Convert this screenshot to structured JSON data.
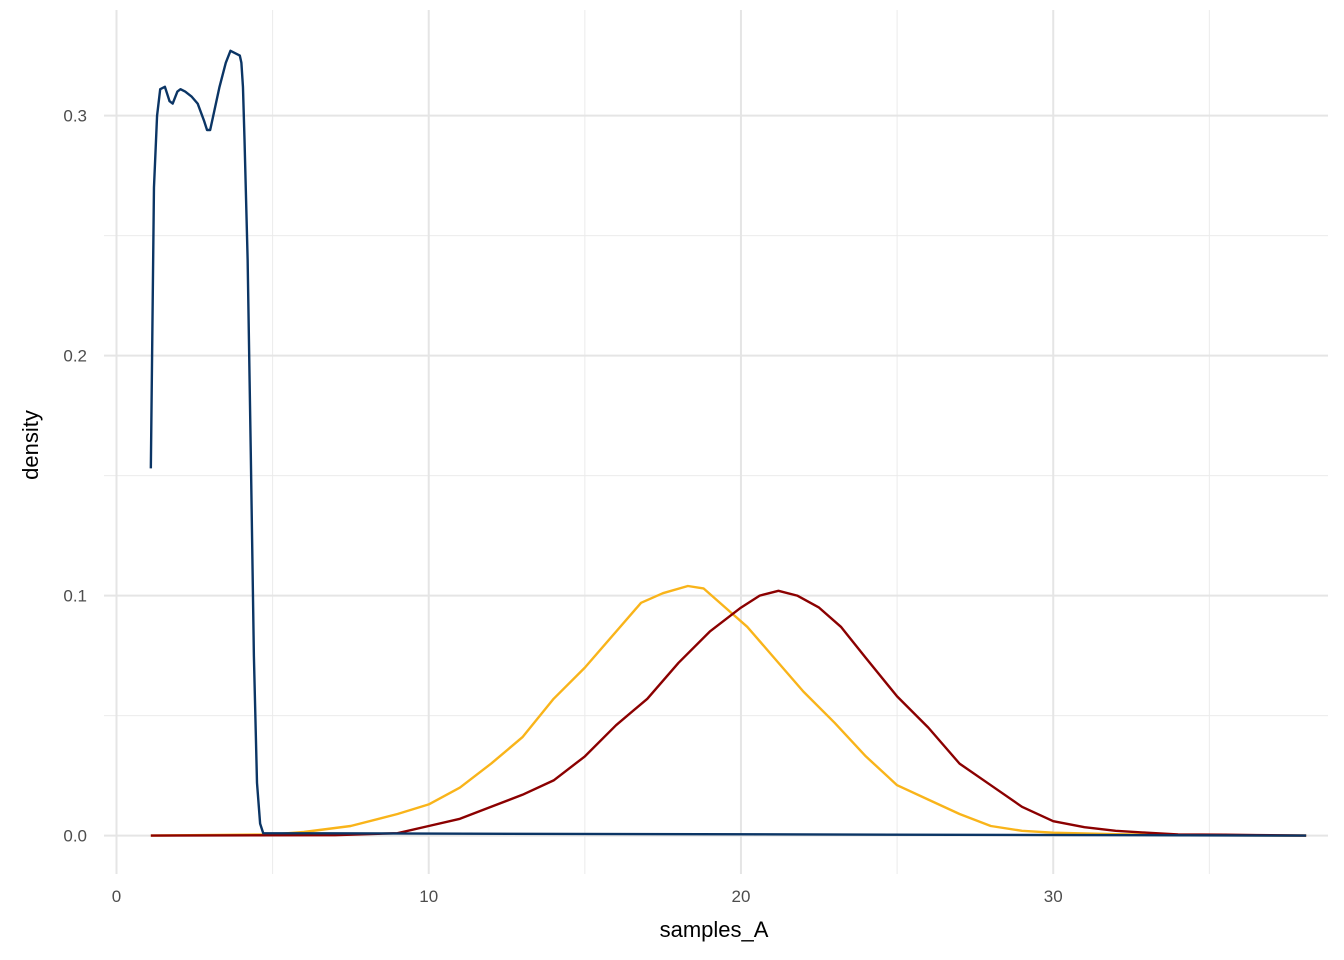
{
  "chart_data": {
    "type": "line",
    "title": "",
    "xlabel": "samples_A",
    "ylabel": "density",
    "xlim": [
      -0.4,
      38.8
    ],
    "ylim": [
      -0.016,
      0.344
    ],
    "x_ticks": [
      0,
      10,
      20,
      30
    ],
    "x_tick_labels": [
      "0",
      "10",
      "20",
      "30"
    ],
    "y_ticks": [
      0.0,
      0.1,
      0.2,
      0.3
    ],
    "y_tick_labels": [
      "0.0",
      "0.1",
      "0.2",
      "0.3"
    ],
    "grid": true,
    "legend": "none",
    "series": [
      {
        "color": "#F9B41A",
        "points": [
          [
            1.1,
            0.0
          ],
          [
            5,
            0.0005
          ],
          [
            6,
            0.0015
          ],
          [
            7.5,
            0.004
          ],
          [
            9,
            0.009
          ],
          [
            10,
            0.013
          ],
          [
            11,
            0.02
          ],
          [
            12,
            0.03
          ],
          [
            13,
            0.041
          ],
          [
            14,
            0.057
          ],
          [
            15,
            0.07
          ],
          [
            16,
            0.085
          ],
          [
            16.8,
            0.097
          ],
          [
            17.5,
            0.101
          ],
          [
            18.3,
            0.104
          ],
          [
            18.8,
            0.103
          ],
          [
            19.5,
            0.095
          ],
          [
            20.2,
            0.087
          ],
          [
            21,
            0.075
          ],
          [
            22,
            0.06
          ],
          [
            23,
            0.047
          ],
          [
            24,
            0.033
          ],
          [
            25,
            0.021
          ],
          [
            26,
            0.015
          ],
          [
            27,
            0.009
          ],
          [
            28,
            0.004
          ],
          [
            29,
            0.002
          ],
          [
            30,
            0.0012
          ],
          [
            32,
            0.0006
          ],
          [
            34,
            0.0002
          ],
          [
            38.1,
            0.0
          ]
        ]
      },
      {
        "color": "#8B0000",
        "points": [
          [
            1.1,
            0.0
          ],
          [
            7,
            0.0002
          ],
          [
            9,
            0.001
          ],
          [
            10,
            0.004
          ],
          [
            11,
            0.007
          ],
          [
            12,
            0.012
          ],
          [
            13,
            0.017
          ],
          [
            14,
            0.023
          ],
          [
            15,
            0.033
          ],
          [
            16,
            0.046
          ],
          [
            17,
            0.057
          ],
          [
            18,
            0.072
          ],
          [
            19,
            0.085
          ],
          [
            20,
            0.095
          ],
          [
            20.6,
            0.1
          ],
          [
            21.2,
            0.102
          ],
          [
            21.8,
            0.1
          ],
          [
            22.5,
            0.095
          ],
          [
            23.2,
            0.087
          ],
          [
            24,
            0.074
          ],
          [
            25,
            0.058
          ],
          [
            26,
            0.045
          ],
          [
            27,
            0.03
          ],
          [
            28,
            0.021
          ],
          [
            29,
            0.012
          ],
          [
            30,
            0.006
          ],
          [
            31,
            0.0035
          ],
          [
            32,
            0.002
          ],
          [
            33,
            0.0012
          ],
          [
            34,
            0.0005
          ],
          [
            35.5,
            0.0004
          ],
          [
            36.5,
            0.0002
          ],
          [
            38.1,
            0.0
          ]
        ]
      },
      {
        "color": "#0B3565",
        "points": [
          [
            1.1,
            0.153
          ],
          [
            1.2,
            0.27
          ],
          [
            1.3,
            0.3
          ],
          [
            1.4,
            0.311
          ],
          [
            1.55,
            0.312
          ],
          [
            1.7,
            0.306
          ],
          [
            1.8,
            0.305
          ],
          [
            1.95,
            0.31
          ],
          [
            2.05,
            0.311
          ],
          [
            2.2,
            0.31
          ],
          [
            2.4,
            0.308
          ],
          [
            2.6,
            0.305
          ],
          [
            2.8,
            0.298
          ],
          [
            2.9,
            0.294
          ],
          [
            3.0,
            0.294
          ],
          [
            3.1,
            0.3
          ],
          [
            3.3,
            0.312
          ],
          [
            3.5,
            0.322
          ],
          [
            3.65,
            0.327
          ],
          [
            3.8,
            0.326
          ],
          [
            3.95,
            0.325
          ],
          [
            4.0,
            0.322
          ],
          [
            4.05,
            0.312
          ],
          [
            4.1,
            0.29
          ],
          [
            4.2,
            0.24
          ],
          [
            4.3,
            0.16
          ],
          [
            4.4,
            0.075
          ],
          [
            4.5,
            0.022
          ],
          [
            4.6,
            0.005
          ],
          [
            4.7,
            0.001
          ],
          [
            38.1,
            0.0
          ]
        ]
      }
    ]
  }
}
